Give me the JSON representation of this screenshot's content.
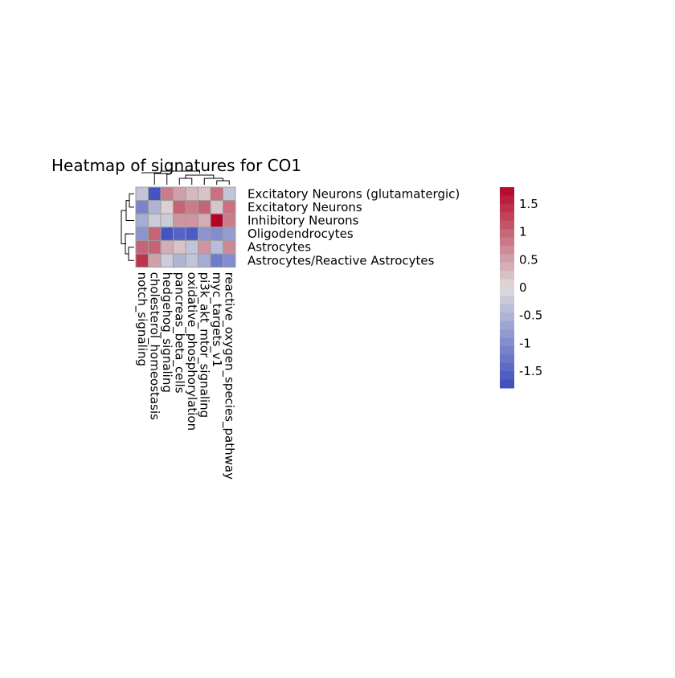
{
  "chart_data": {
    "type": "heatmap",
    "title": "Heatmap of signatures for CO1",
    "rows": [
      "Excitatory Neurons (glutamatergic)",
      "Excitatory Neurons",
      "Inhibitory Neurons",
      "Oligodendrocytes",
      "Astrocytes",
      "Astrocytes/Reactive Astrocytes"
    ],
    "columns": [
      "notch_signaling",
      "cholesterol_homeostasis",
      "hedgehog_signaling",
      "pancreas_beta_cells",
      "oxidative_phosphorylation",
      "pi3k_akt_mtor_signaling",
      "myc_targets_v1",
      "reactive_oxygen_species_pathway"
    ],
    "values": [
      [
        -0.3,
        -1.7,
        0.8,
        0.5,
        0.3,
        0.2,
        0.9,
        -0.3
      ],
      [
        -1.1,
        -0.5,
        0.1,
        1.0,
        0.8,
        1.0,
        0.2,
        0.9
      ],
      [
        -0.6,
        -0.2,
        -0.2,
        0.6,
        0.6,
        0.4,
        1.8,
        0.8
      ],
      [
        -0.9,
        1.0,
        -1.7,
        -1.5,
        -1.6,
        -0.9,
        -1.0,
        -0.8
      ],
      [
        1.0,
        1.0,
        0.4,
        0.2,
        -0.3,
        0.6,
        -0.4,
        0.7
      ],
      [
        1.4,
        0.5,
        -0.2,
        -0.5,
        -0.3,
        -0.6,
        -1.2,
        -1.0
      ]
    ],
    "colorbar": {
      "range": [
        -1.8,
        1.8
      ],
      "ticks": [
        -1.5,
        -1,
        -0.5,
        0,
        0.5,
        1,
        1.5
      ],
      "tick_labels": [
        "-1.5",
        "-1",
        "-0.5",
        "0",
        "0.5",
        "1",
        "1.5"
      ],
      "low_color": "#3b4cc0",
      "mid_color": "#dddcdc",
      "high_color": "#b40426"
    },
    "row_dendrogram": true,
    "column_dendrogram": true,
    "legend_position": "right"
  }
}
